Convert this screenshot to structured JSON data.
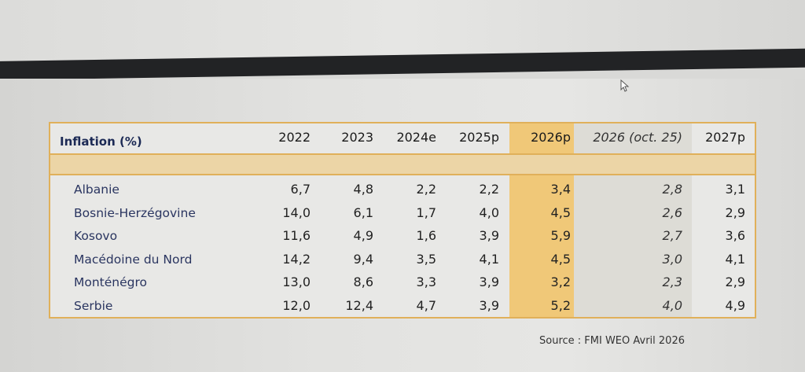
{
  "table": {
    "title": "Inflation (%)",
    "columns": [
      "2022",
      "2023",
      "2024e",
      "2025p",
      "2026p",
      "2026 (oct. 25)",
      "2027p"
    ],
    "rows": [
      {
        "country": "Albanie",
        "values": [
          "6,7",
          "4,8",
          "2,2",
          "2,2",
          "3,4",
          "2,8",
          "3,1"
        ]
      },
      {
        "country": "Bosnie-Herzégovine",
        "values": [
          "14,0",
          "6,1",
          "1,7",
          "4,0",
          "4,5",
          "2,6",
          "2,9"
        ]
      },
      {
        "country": "Kosovo",
        "values": [
          "11,6",
          "4,9",
          "1,6",
          "3,9",
          "5,9",
          "2,7",
          "3,6"
        ]
      },
      {
        "country": "Macédoine du Nord",
        "values": [
          "14,2",
          "9,4",
          "3,5",
          "4,1",
          "4,5",
          "3,0",
          "4,1"
        ]
      },
      {
        "country": "Monténégro",
        "values": [
          "13,0",
          "8,6",
          "3,3",
          "3,9",
          "3,2",
          "2,3",
          "2,9"
        ]
      },
      {
        "country": "Serbie",
        "values": [
          "12,0",
          "12,4",
          "4,7",
          "3,9",
          "5,2",
          "4,0",
          "4,9"
        ]
      }
    ]
  },
  "source": "Source : FMI WEO Avril 2026",
  "colors": {
    "accent": "#e0b05a",
    "highlight": "#f0c878",
    "title": "#1c2a55"
  }
}
